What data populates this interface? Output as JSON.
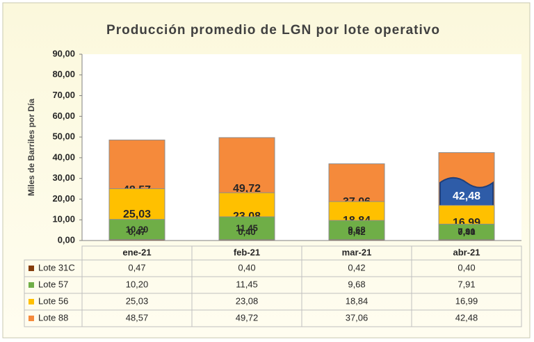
{
  "chart_data": {
    "type": "stacked_bar",
    "title": "Producción promedio de LGN por lote operativo",
    "y_label": "Miles de Barriles por Día",
    "categories": [
      "ene-21",
      "feb-21",
      "mar-21",
      "abr-21"
    ],
    "series": [
      {
        "name": "Lote 88",
        "color": "#f58a3b",
        "values": [
          48.57,
          49.72,
          37.06,
          42.48
        ],
        "value_labels": [
          "48,57",
          "49,72",
          "37,06",
          "42,48"
        ]
      },
      {
        "name": "Lote 56",
        "color": "#ffc000",
        "values": [
          25.03,
          23.08,
          18.84,
          16.99
        ],
        "value_labels": [
          "25,03",
          "23,08",
          "18,84",
          "16,99"
        ]
      },
      {
        "name": "Lote 57",
        "color": "#6fae47",
        "values": [
          10.2,
          11.45,
          9.68,
          7.91
        ],
        "value_labels": [
          "10,20",
          "11,45",
          "9,68",
          "7,91"
        ]
      },
      {
        "name": "Lote 31C",
        "color": "#843c0c",
        "values": [
          0.47,
          0.4,
          0.42,
          0.4
        ],
        "value_labels": [
          "0,47",
          "0,40",
          "0,42",
          "0,40"
        ]
      }
    ],
    "ylim": [
      0,
      90
    ],
    "yticks": [
      {
        "value": 0,
        "label": "0,00"
      },
      {
        "value": 10,
        "label": "10,00"
      },
      {
        "value": 20,
        "label": "20,00"
      },
      {
        "value": 30,
        "label": "30,00"
      },
      {
        "value": 40,
        "label": "40,00"
      },
      {
        "value": 50,
        "label": "50,00"
      },
      {
        "value": 60,
        "label": "60,00"
      },
      {
        "value": 70,
        "label": "70,00"
      },
      {
        "value": 80,
        "label": "80,00"
      },
      {
        "value": 90,
        "label": "90,00"
      }
    ]
  }
}
